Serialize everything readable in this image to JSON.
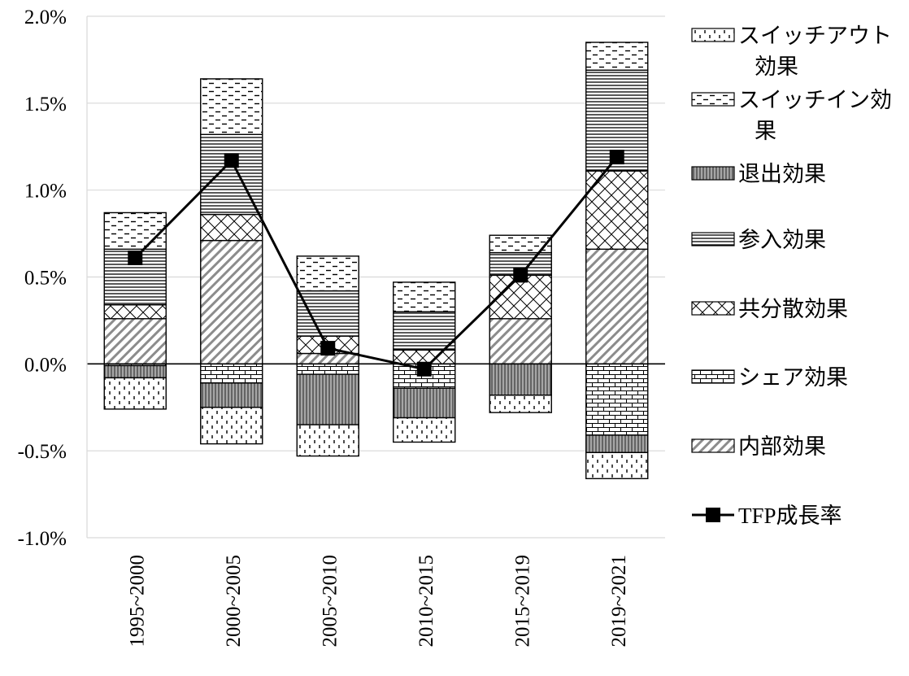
{
  "colors": {
    "ink": "#000000",
    "grid": "#d9d9d9",
    "background": "#ffffff"
  },
  "chart_data": {
    "type": "bar",
    "stacked": true,
    "title": "",
    "xlabel": "",
    "ylabel": "",
    "ylim": [
      -0.01,
      0.02
    ],
    "y_ticks": [
      "2.0%",
      "1.5%",
      "1.0%",
      "0.5%",
      "0.0%",
      "-0.5%",
      "-1.0%"
    ],
    "y_tick_values": [
      0.02,
      0.015,
      0.01,
      0.005,
      0.0,
      -0.005,
      -0.01
    ],
    "categories": [
      "1995~2000",
      "2000~2005",
      "2005~2010",
      "2010~2015",
      "2015~2019",
      "2019~2021"
    ],
    "grid": true,
    "legend_position": "right",
    "series": [
      {
        "name": "内部効果",
        "pattern": "diagonal-hatch",
        "values": [
          0.0026,
          0.0071,
          0.0006,
          0.0,
          0.0026,
          0.0066
        ]
      },
      {
        "name": "シェア効果",
        "pattern": "brick",
        "values": [
          -0.0001,
          -0.0011,
          -0.0006,
          -0.0014,
          0.0,
          -0.0041
        ]
      },
      {
        "name": "共分散効果",
        "pattern": "crosshatch",
        "values": [
          0.0008,
          0.0015,
          0.001,
          0.0008,
          0.0025,
          0.0045
        ]
      },
      {
        "name": "参入効果",
        "pattern": "horizontal-lines",
        "values": [
          0.0032,
          0.0046,
          0.0026,
          0.0022,
          0.0013,
          0.0058
        ]
      },
      {
        "name": "退出効果",
        "pattern": "vertical-lines",
        "values": [
          -0.0007,
          -0.0014,
          -0.0029,
          -0.0017,
          -0.0018,
          -0.001
        ]
      },
      {
        "name": "スイッチイン効果",
        "pattern": "dashes",
        "values": [
          0.0021,
          0.0032,
          0.002,
          0.0017,
          0.001,
          0.0016
        ]
      },
      {
        "name": "スイッチアウト効果",
        "pattern": "dots",
        "values": [
          -0.0018,
          -0.0021,
          -0.0018,
          -0.0014,
          -0.001,
          -0.0015
        ]
      }
    ],
    "line": {
      "name": "TFP成長率",
      "values": [
        0.0061,
        0.0117,
        0.0009,
        -0.0003,
        0.0051,
        0.0119
      ]
    },
    "legend": [
      {
        "key": "スイッチアウト効果",
        "lines": [
          "スイッチアウト",
          "効果"
        ],
        "pattern": "dots"
      },
      {
        "key": "スイッチイン効果",
        "lines": [
          "スイッチイン効",
          "果"
        ],
        "pattern": "dashes"
      },
      {
        "key": "退出効果",
        "lines": [
          "退出効果"
        ],
        "pattern": "vertical-lines"
      },
      {
        "key": "参入効果",
        "lines": [
          "参入効果"
        ],
        "pattern": "horizontal-lines"
      },
      {
        "key": "共分散効果",
        "lines": [
          "共分散効果"
        ],
        "pattern": "crosshatch"
      },
      {
        "key": "シェア効果",
        "lines": [
          "シェア効果"
        ],
        "pattern": "brick"
      },
      {
        "key": "内部効果",
        "lines": [
          "内部効果"
        ],
        "pattern": "diagonal-hatch"
      },
      {
        "key": "TFP成長率",
        "lines": [
          "TFP成長率"
        ],
        "pattern": "line-marker"
      }
    ]
  }
}
